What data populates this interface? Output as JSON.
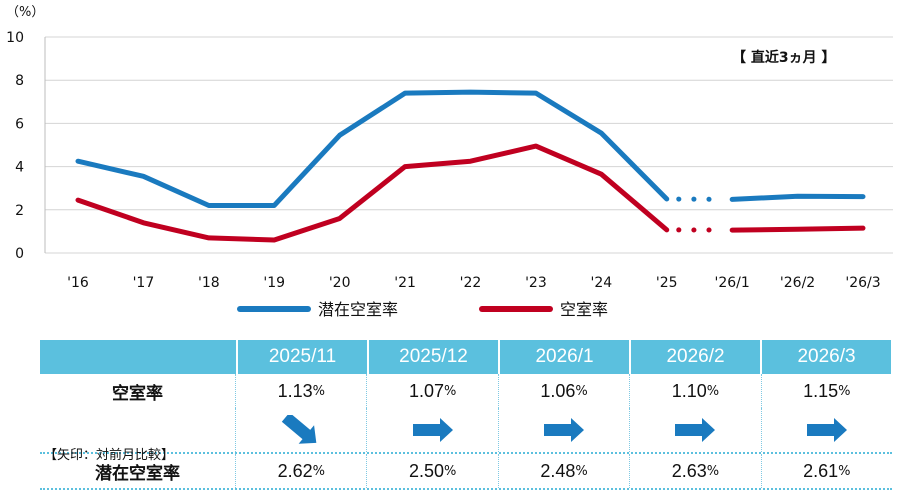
{
  "chart_data": {
    "type": "line",
    "unit_label": "（%）",
    "ylim": [
      0,
      10
    ],
    "yticks": [
      0,
      2,
      4,
      6,
      8,
      10
    ],
    "categories": [
      "'16",
      "'17",
      "'18",
      "'19",
      "'20",
      "'21",
      "'22",
      "'23",
      "'24",
      "'25",
      "'26/1",
      "'26/2",
      "'26/3"
    ],
    "series": [
      {
        "name": "潜在空室率",
        "color": "#1a7abf",
        "values": [
          4.25,
          3.55,
          2.2,
          2.2,
          5.45,
          7.4,
          7.45,
          7.4,
          5.55,
          2.5,
          2.48,
          2.63,
          2.61
        ]
      },
      {
        "name": "空室率",
        "color": "#c00020",
        "values": [
          2.45,
          1.4,
          0.7,
          0.6,
          1.6,
          4.0,
          4.25,
          4.95,
          3.65,
          1.07,
          1.06,
          1.1,
          1.15
        ]
      }
    ],
    "dotted_after_index": 9,
    "period_label": "【 直近3ヵ月 】",
    "grid": "horizontal"
  },
  "table": {
    "columns": [
      "2025/11",
      "2025/12",
      "2026/1",
      "2026/2",
      "2026/3"
    ],
    "vacancy_label": "空室率",
    "arrow_label": "【矢印：対前月比較】",
    "latent_label": "潜在空室率",
    "pct_unit": "%",
    "vacancy_values": [
      "1.13",
      "1.07",
      "1.06",
      "1.10",
      "1.15"
    ],
    "latent_values": [
      "2.62",
      "2.50",
      "2.48",
      "2.63",
      "2.61"
    ],
    "arrow_directions": [
      "down",
      "flat",
      "flat",
      "flat",
      "flat"
    ],
    "arrow_color": "#1a7abf"
  }
}
